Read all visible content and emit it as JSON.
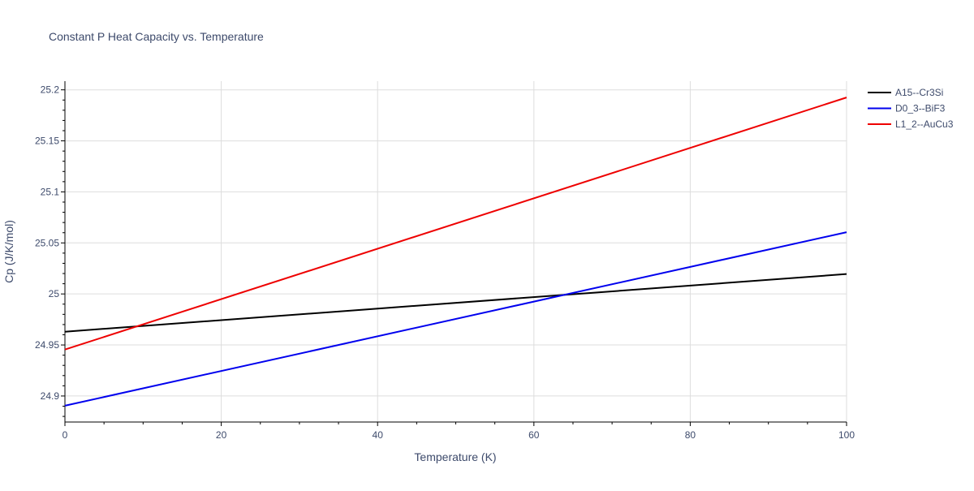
{
  "chart_data": {
    "type": "line",
    "title": "Constant P Heat Capacity vs. Temperature",
    "xlabel": "Temperature (K)",
    "ylabel": "Cp (J/K/mol)",
    "xlim": [
      0,
      100
    ],
    "ylim": [
      24.8745,
      25.2085
    ],
    "x_ticks": [
      0,
      20,
      40,
      60,
      80,
      100
    ],
    "x_tick_labels": [
      "0",
      "20",
      "40",
      "60",
      "80",
      "100"
    ],
    "y_ticks": [
      24.9,
      24.95,
      25,
      25.05,
      25.1,
      25.15,
      25.2
    ],
    "y_tick_labels": [
      "24.9",
      "24.95",
      "25",
      "25.05",
      "25.1",
      "25.15",
      "25.2"
    ],
    "grid": true,
    "legend_position": "top-right",
    "series": [
      {
        "name": "A15--Cr3Si",
        "color": "#000000",
        "x": [
          0,
          100
        ],
        "y": [
          24.963,
          25.0195
        ]
      },
      {
        "name": "D0_3--BiF3",
        "color": "#0000ee",
        "x": [
          0,
          100
        ],
        "y": [
          24.8905,
          25.0605
        ]
      },
      {
        "name": "L1_2--AuCu3",
        "color": "#ee0000",
        "x": [
          0,
          100
        ],
        "y": [
          24.9455,
          25.1925
        ]
      }
    ]
  }
}
